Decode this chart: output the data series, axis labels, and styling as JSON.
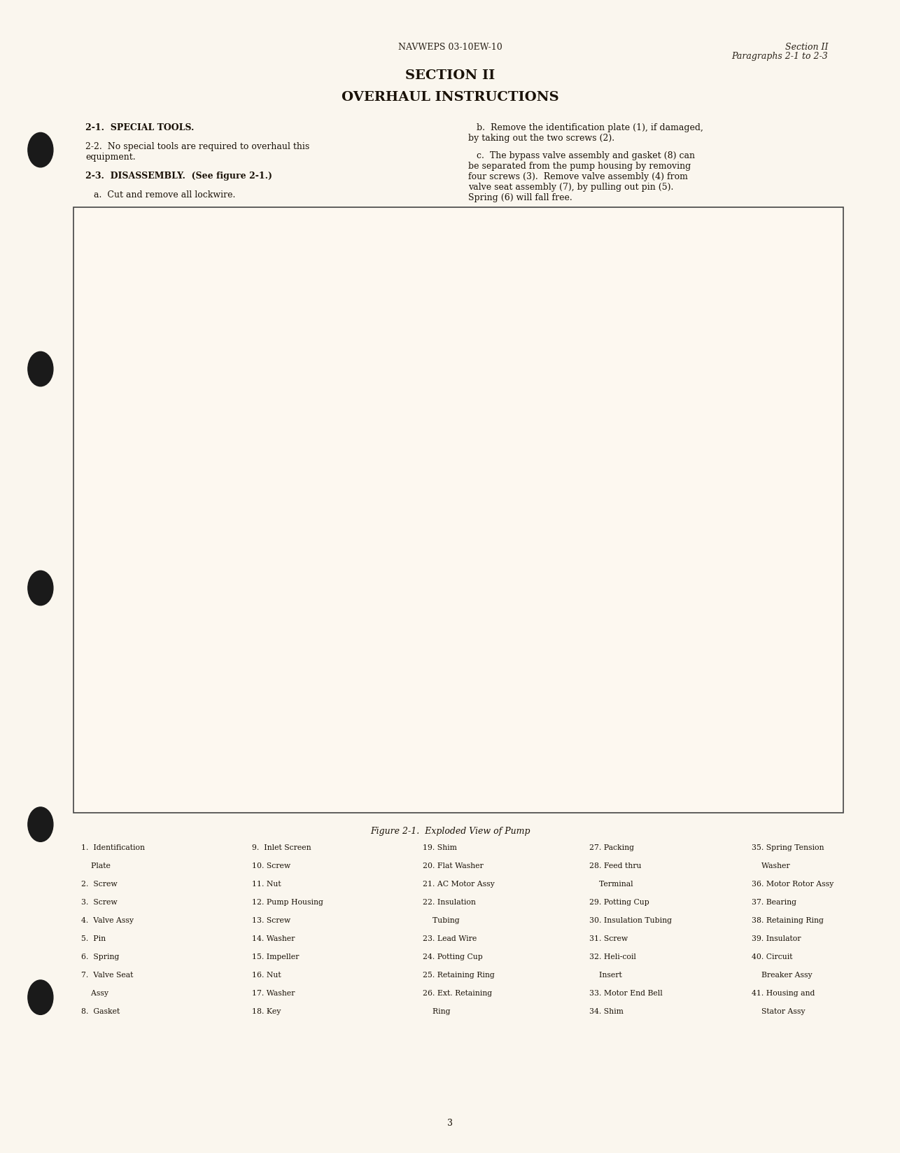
{
  "bg_color": "#f5f0e8",
  "page_bg": "#faf6ee",
  "header_left": "NAVWEPS 03-10EW-10",
  "header_right_line1": "Section II",
  "header_right_line2": "Paragraphs 2-1 to 2-3",
  "section_title_line1": "SECTION II",
  "section_title_line2": "OVERHAUL INSTRUCTIONS",
  "para_21_title": "2-1.  SPECIAL TOOLS.",
  "para_22": "2-2.  No special tools are required to overhaul this\nequipment.",
  "para_23": "2-3.  DISASSEMBLY.  (See figure 2-1.)",
  "para_23a": "   a.  Cut and remove all lockwire.",
  "right_col_b": "   b.  Remove the identification plate (1), if damaged,\nby taking out the two screws (2).",
  "right_col_c": "   c.  The bypass valve assembly and gasket (8) can\nbe separated from the pump housing by removing\nfour screws (3).  Remove valve assembly (4) from\nvalve seat assembly (7), by pulling out pin (5).\nSpring (6) will fall free.",
  "figure_caption": "Figure 2-1.  Exploded View of Pump",
  "page_number": "3",
  "legend_items": [
    [
      "1.  Identification",
      "    Plate",
      "2.  Screw",
      "3.  Screw",
      "4.  Valve Assy",
      "5.  Pin",
      "6.  Spring",
      "7.  Valve Seat",
      "    Assy",
      "8.  Gasket"
    ],
    [
      "9.  Inlet Screen",
      "10. Screw",
      "11. Nut",
      "12. Pump Housing",
      "13. Screw",
      "14. Washer",
      "15. Impeller",
      "16. Nut",
      "17. Washer",
      "18. Key"
    ],
    [
      "19. Shim",
      "20. Flat Washer",
      "21. AC Motor Assy",
      "22. Insulation",
      "    Tubing",
      "23. Lead Wire",
      "24. Potting Cup",
      "25. Retaining Ring",
      "26. Ext. Retaining",
      "    Ring"
    ],
    [
      "27. Packing",
      "28. Feed thru",
      "    Terminal",
      "29. Potting Cup",
      "30. Insulation Tubing",
      "31. Screw",
      "32. Heli-coil",
      "    Insert",
      "33. Motor End Bell",
      "34. Shim"
    ],
    [
      "35. Spring Tension",
      "    Washer",
      "36. Motor Rotor Assy",
      "37. Bearing",
      "38. Retaining Ring",
      "39. Insulator",
      "40. Circuit",
      "    Breaker Assy",
      "41. Housing and",
      "    Stator Assy"
    ]
  ]
}
